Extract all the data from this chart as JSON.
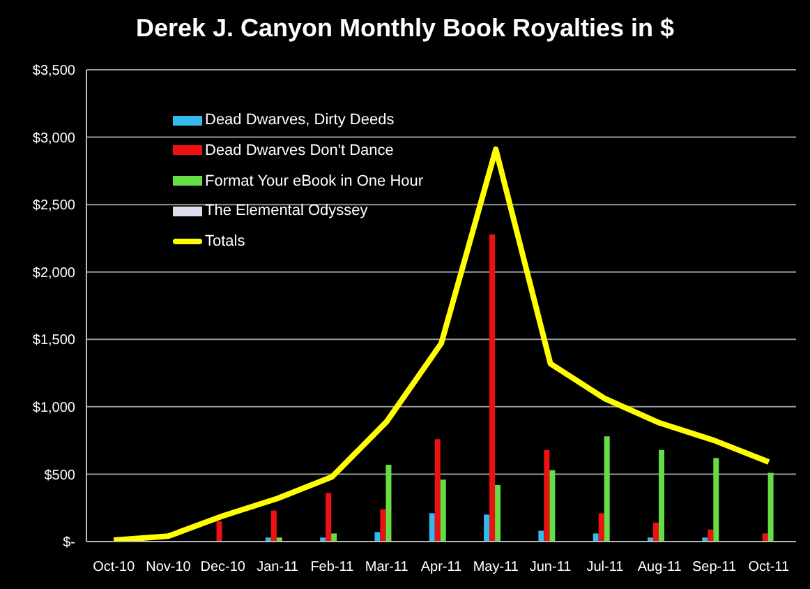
{
  "chart_data": {
    "type": "bar",
    "title": "Derek J. Canyon Monthly Book Royalties in $",
    "categories": [
      "Oct-10",
      "Nov-10",
      "Dec-10",
      "Jan-11",
      "Feb-11",
      "Mar-11",
      "Apr-11",
      "May-11",
      "Jun-11",
      "Jul-11",
      "Aug-11",
      "Sep-11",
      "Oct-11"
    ],
    "series": [
      {
        "name": "Dead Dwarves, Dirty Deeds",
        "color": "#33bbee",
        "values": [
          null,
          null,
          null,
          30,
          30,
          70,
          210,
          200,
          80,
          60,
          30,
          30,
          null
        ]
      },
      {
        "name": "Dead Dwarves Don't Dance",
        "color": "#ee1111",
        "values": [
          null,
          null,
          150,
          230,
          360,
          240,
          760,
          2280,
          680,
          210,
          140,
          90,
          60
        ]
      },
      {
        "name": "Format Your eBook in One Hour",
        "color": "#66dd44",
        "values": [
          null,
          null,
          null,
          30,
          60,
          570,
          460,
          420,
          530,
          780,
          680,
          620,
          510
        ]
      },
      {
        "name": "The Elemental Odyssey",
        "color": "#ddddee",
        "values": [
          null,
          null,
          null,
          null,
          null,
          null,
          null,
          null,
          null,
          null,
          null,
          null,
          null
        ]
      },
      {
        "name": "Totals",
        "type": "line",
        "color": "#ffff00",
        "values": [
          10,
          40,
          190,
          320,
          480,
          890,
          1470,
          2910,
          1320,
          1060,
          880,
          750,
          590
        ]
      }
    ],
    "ylim": [
      0,
      3500
    ],
    "yticks": [
      {
        "value": 0,
        "label": "$-"
      },
      {
        "value": 500,
        "label": "$500"
      },
      {
        "value": 1000,
        "label": "$1,000"
      },
      {
        "value": 1500,
        "label": "$1,500"
      },
      {
        "value": 2000,
        "label": "$2,000"
      },
      {
        "value": 2500,
        "label": "$2,500"
      },
      {
        "value": 3000,
        "label": "$3,000"
      },
      {
        "value": 3500,
        "label": "$3,500"
      }
    ],
    "grid": "y",
    "legend": "top left",
    "marker": "none",
    "line_style": "solid"
  }
}
